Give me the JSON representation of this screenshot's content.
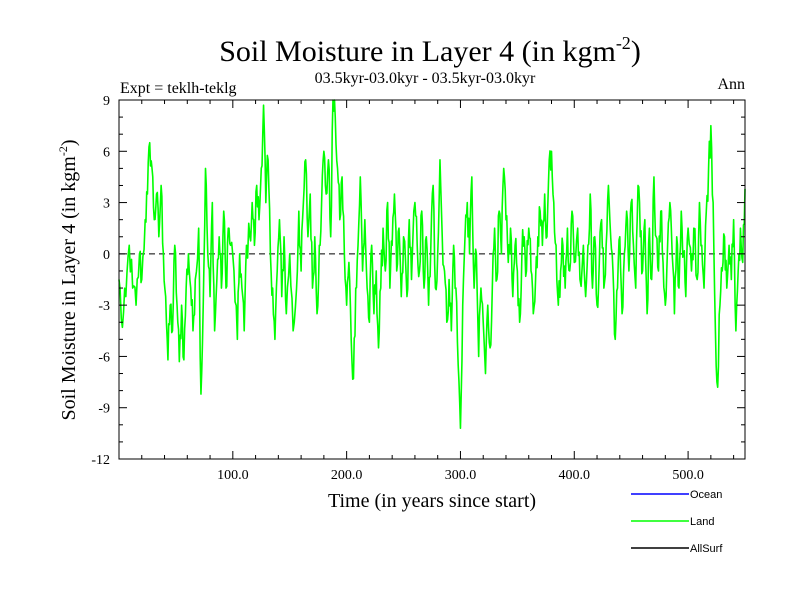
{
  "chart_data": {
    "type": "line",
    "title_main": "Soil Moisture in Layer 4 (in kgm",
    "title_sup": "-2",
    "title_close": ")",
    "subtitle": "03.5kyr-03.0kyr - 03.5kyr-03.0kyr",
    "expt_label": "Expt = teklh-teklg",
    "season_label": "Ann",
    "xlabel": "Time (in years since start)",
    "ylabel_main": "Soil Moisture in Layer 4 (in kgm",
    "ylabel_sup": "-2",
    "ylabel_close": ")",
    "xlim": [
      0,
      550
    ],
    "ylim": [
      -12,
      9
    ],
    "x_ticks": [
      100,
      200,
      300,
      400,
      500
    ],
    "x_tick_labels": [
      "100.0",
      "200.0",
      "300.0",
      "400.0",
      "500.0"
    ],
    "y_ticks": [
      -12,
      -9,
      -6,
      -3,
      0,
      3,
      6,
      9
    ],
    "y_tick_labels": [
      "-12",
      "-9",
      "-6",
      "-3",
      "0",
      "3",
      "6",
      "9"
    ],
    "zero_line": true,
    "legend": [
      {
        "name": "Ocean",
        "color": "#0000ff"
      },
      {
        "name": "Land",
        "color": "#00ff00"
      },
      {
        "name": "AllSurf",
        "color": "#000000"
      }
    ],
    "series": [
      {
        "name": "Land",
        "color": "#00ff00",
        "anchors": [
          [
            0,
            -1.5
          ],
          [
            3,
            -4.3
          ],
          [
            6,
            -2.5
          ],
          [
            9,
            0.5
          ],
          [
            12,
            -2.0
          ],
          [
            15,
            -3.0
          ],
          [
            18,
            0.0
          ],
          [
            20,
            -1.5
          ],
          [
            23,
            2.0
          ],
          [
            25,
            3.5
          ],
          [
            27,
            6.5
          ],
          [
            29,
            5.0
          ],
          [
            31,
            2.0
          ],
          [
            33,
            3.5
          ],
          [
            35,
            1.0
          ],
          [
            37,
            4.0
          ],
          [
            39,
            0.0
          ],
          [
            41,
            -2.5
          ],
          [
            43,
            -6.2
          ],
          [
            45,
            -3.0
          ],
          [
            47,
            -4.5
          ],
          [
            49,
            0.5
          ],
          [
            51,
            -3.0
          ],
          [
            53,
            -6.3
          ],
          [
            55,
            -3.0
          ],
          [
            57,
            -6.2
          ],
          [
            59,
            -2.0
          ],
          [
            61,
            0.0
          ],
          [
            63,
            -2.0
          ],
          [
            65,
            -4.5
          ],
          [
            67,
            -1.5
          ],
          [
            70,
            1.5
          ],
          [
            72,
            -8.2
          ],
          [
            74,
            -3.0
          ],
          [
            76,
            5.0
          ],
          [
            78,
            0.0
          ],
          [
            80,
            -2.5
          ],
          [
            82,
            3.0
          ],
          [
            84,
            -4.5
          ],
          [
            86,
            -1.5
          ],
          [
            88,
            1.0
          ],
          [
            90,
            -2.0
          ],
          [
            92,
            2.5
          ],
          [
            94,
            -2.0
          ],
          [
            96,
            1.5
          ],
          [
            98,
            0.5
          ],
          [
            101,
            -1.0
          ],
          [
            104,
            -5.0
          ],
          [
            106,
            0.0
          ],
          [
            108,
            -2.0
          ],
          [
            110,
            -4.5
          ],
          [
            112,
            0.5
          ],
          [
            115,
            1.0
          ],
          [
            117,
            3.0
          ],
          [
            119,
            0.5
          ],
          [
            121,
            4.0
          ],
          [
            123,
            2.0
          ],
          [
            125,
            5.0
          ],
          [
            127,
            8.7
          ],
          [
            129,
            3.0
          ],
          [
            131,
            5.5
          ],
          [
            133,
            0.0
          ],
          [
            135,
            -2.0
          ],
          [
            137,
            -5.0
          ],
          [
            139,
            -1.0
          ],
          [
            141,
            2.0
          ],
          [
            143,
            -2.5
          ],
          [
            145,
            1.0
          ],
          [
            147,
            -3.5
          ],
          [
            150,
            0.0
          ],
          [
            153,
            -4.5
          ],
          [
            156,
            -2.0
          ],
          [
            158,
            2.5
          ],
          [
            160,
            -1.0
          ],
          [
            162,
            3.0
          ],
          [
            164,
            5.5
          ],
          [
            166,
            1.0
          ],
          [
            168,
            3.5
          ],
          [
            170,
            -2.0
          ],
          [
            172,
            1.0
          ],
          [
            174,
            -3.5
          ],
          [
            176,
            0.5
          ],
          [
            178,
            3.0
          ],
          [
            180,
            6.0
          ],
          [
            182,
            3.5
          ],
          [
            184,
            5.5
          ],
          [
            186,
            1.0
          ],
          [
            188,
            9.0
          ],
          [
            190,
            8.0
          ],
          [
            192,
            5.0
          ],
          [
            194,
            2.0
          ],
          [
            196,
            4.5
          ],
          [
            198,
            0.0
          ],
          [
            200,
            -3.0
          ],
          [
            202,
            -0.5
          ],
          [
            204,
            -5.0
          ],
          [
            206,
            -7.3
          ],
          [
            208,
            -2.0
          ],
          [
            210,
            0.5
          ],
          [
            212,
            4.5
          ],
          [
            214,
            -1.0
          ],
          [
            216,
            2.0
          ],
          [
            218,
            -2.0
          ],
          [
            220,
            -4.0
          ],
          [
            222,
            0.5
          ],
          [
            224,
            -3.5
          ],
          [
            226,
            -1.0
          ],
          [
            228,
            -5.5
          ],
          [
            230,
            -2.0
          ],
          [
            232,
            1.5
          ],
          [
            234,
            -1.0
          ],
          [
            236,
            3.0
          ],
          [
            238,
            -2.0
          ],
          [
            240,
            0.5
          ],
          [
            242,
            3.5
          ],
          [
            244,
            -1.0
          ],
          [
            246,
            1.5
          ],
          [
            248,
            -2.5
          ],
          [
            250,
            1.0
          ],
          [
            253,
            -2.5
          ],
          [
            255,
            2.0
          ],
          [
            257,
            -1.5
          ],
          [
            260,
            3.0
          ],
          [
            262,
            0.5
          ],
          [
            264,
            -1.0
          ],
          [
            266,
            2.5
          ],
          [
            268,
            -2.0
          ],
          [
            270,
            1.0
          ],
          [
            272,
            -3.0
          ],
          [
            274,
            0.5
          ],
          [
            276,
            4.0
          ],
          [
            278,
            -2.0
          ],
          [
            280,
            0.0
          ],
          [
            282,
            5.5
          ],
          [
            284,
            1.0
          ],
          [
            286,
            -1.0
          ],
          [
            288,
            -4.0
          ],
          [
            290,
            -1.5
          ],
          [
            292,
            -4.5
          ],
          [
            294,
            0.5
          ],
          [
            296,
            -2.0
          ],
          [
            298,
            -6.5
          ],
          [
            300,
            -10.2
          ],
          [
            302,
            -3.0
          ],
          [
            304,
            1.0
          ],
          [
            306,
            3.0
          ],
          [
            308,
            0.0
          ],
          [
            310,
            4.5
          ],
          [
            312,
            -2.0
          ],
          [
            314,
            0.0
          ],
          [
            316,
            -6.0
          ],
          [
            318,
            -2.0
          ],
          [
            320,
            -4.0
          ],
          [
            322,
            -7.0
          ],
          [
            324,
            -3.0
          ],
          [
            326,
            -5.5
          ],
          [
            328,
            -2.0
          ],
          [
            330,
            1.5
          ],
          [
            332,
            -1.5
          ],
          [
            334,
            2.5
          ],
          [
            336,
            0.0
          ],
          [
            338,
            5.0
          ],
          [
            340,
            2.0
          ],
          [
            342,
            -0.5
          ],
          [
            344,
            1.5
          ],
          [
            346,
            -2.5
          ],
          [
            348,
            0.5
          ],
          [
            350,
            -1.0
          ],
          [
            352,
            -4.0
          ],
          [
            354,
            0.0
          ],
          [
            356,
            1.0
          ],
          [
            358,
            -1.0
          ],
          [
            360,
            1.5
          ],
          [
            362,
            -1.0
          ],
          [
            364,
            -3.5
          ],
          [
            366,
            -1.5
          ],
          [
            368,
            1.0
          ],
          [
            370,
            2.5
          ],
          [
            372,
            0.5
          ],
          [
            374,
            3.5
          ],
          [
            376,
            1.0
          ],
          [
            378,
            5.5
          ],
          [
            380,
            6.0
          ],
          [
            382,
            3.0
          ],
          [
            384,
            0.5
          ],
          [
            386,
            -3.0
          ],
          [
            388,
            -1.0
          ],
          [
            390,
            0.5
          ],
          [
            392,
            -2.0
          ],
          [
            394,
            1.5
          ],
          [
            396,
            -1.0
          ],
          [
            398,
            2.5
          ],
          [
            400,
            -0.5
          ],
          [
            403,
            1.5
          ],
          [
            405,
            -1.5
          ],
          [
            408,
            0.5
          ],
          [
            410,
            -2.5
          ],
          [
            412,
            0.5
          ],
          [
            414,
            3.5
          ],
          [
            416,
            -2.0
          ],
          [
            418,
            1.0
          ],
          [
            420,
            -3.0
          ],
          [
            422,
            -0.5
          ],
          [
            424,
            2.0
          ],
          [
            426,
            -2.0
          ],
          [
            428,
            0.5
          ],
          [
            430,
            4.0
          ],
          [
            432,
            1.0
          ],
          [
            434,
            -1.0
          ],
          [
            436,
            -5.0
          ],
          [
            438,
            -2.0
          ],
          [
            440,
            1.0
          ],
          [
            442,
            -3.5
          ],
          [
            444,
            0.0
          ],
          [
            446,
            2.5
          ],
          [
            448,
            -1.0
          ],
          [
            450,
            3.0
          ],
          [
            452,
            0.5
          ],
          [
            454,
            -2.0
          ],
          [
            456,
            4.0
          ],
          [
            458,
            1.0
          ],
          [
            460,
            -1.0
          ],
          [
            462,
            2.0
          ],
          [
            464,
            -3.5
          ],
          [
            466,
            1.5
          ],
          [
            468,
            -1.5
          ],
          [
            470,
            4.5
          ],
          [
            472,
            1.0
          ],
          [
            474,
            -1.0
          ],
          [
            476,
            2.5
          ],
          [
            478,
            -0.5
          ],
          [
            480,
            -3.0
          ],
          [
            482,
            0.5
          ],
          [
            484,
            3.0
          ],
          [
            486,
            0.0
          ],
          [
            488,
            -3.5
          ],
          [
            490,
            1.0
          ],
          [
            492,
            -2.0
          ],
          [
            494,
            2.5
          ],
          [
            496,
            0.0
          ],
          [
            498,
            -2.5
          ],
          [
            500,
            1.5
          ],
          [
            503,
            -1.0
          ],
          [
            505,
            1.5
          ],
          [
            508,
            -1.5
          ],
          [
            510,
            3.0
          ],
          [
            512,
            0.5
          ],
          [
            514,
            -2.0
          ],
          [
            516,
            2.5
          ],
          [
            518,
            5.0
          ],
          [
            520,
            7.5
          ],
          [
            522,
            3.0
          ],
          [
            524,
            -4.5
          ],
          [
            526,
            -7.8
          ],
          [
            528,
            -3.0
          ],
          [
            530,
            -1.0
          ],
          [
            532,
            1.0
          ],
          [
            534,
            -2.0
          ],
          [
            536,
            0.5
          ],
          [
            538,
            -1.5
          ],
          [
            540,
            2.0
          ],
          [
            542,
            -4.5
          ],
          [
            544,
            -1.0
          ],
          [
            546,
            1.5
          ],
          [
            548,
            -0.5
          ],
          [
            550,
            3.8
          ]
        ]
      }
    ]
  }
}
